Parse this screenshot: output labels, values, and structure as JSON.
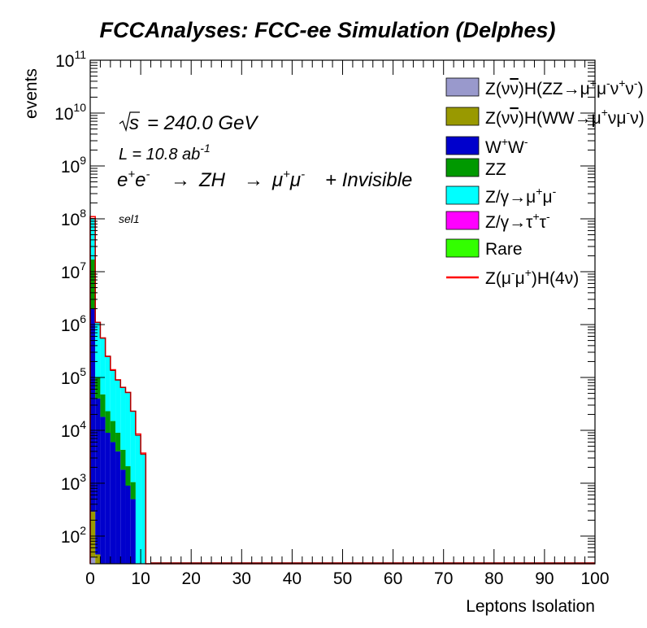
{
  "chart_data": {
    "type": "bar",
    "title": "FCCAnalyses: FCC-ee Simulation (Delphes)",
    "xlabel": "Leptons Isolation",
    "ylabel": "events",
    "log_y": true,
    "stacked": true,
    "xlim": [
      0,
      100
    ],
    "ylim": [
      30,
      100000000000
    ],
    "grid": false,
    "legend_position": "top-right",
    "x_ticks": [
      "0",
      "10",
      "20",
      "30",
      "40",
      "50",
      "60",
      "70",
      "80",
      "90",
      "100"
    ],
    "y_ticks": [
      {
        "base": "10",
        "exp": "2"
      },
      {
        "base": "10",
        "exp": "3"
      },
      {
        "base": "10",
        "exp": "4"
      },
      {
        "base": "10",
        "exp": "5"
      },
      {
        "base": "10",
        "exp": "6"
      },
      {
        "base": "10",
        "exp": "7"
      },
      {
        "base": "10",
        "exp": "8"
      },
      {
        "base": "10",
        "exp": "9"
      },
      {
        "base": "10",
        "exp": "10"
      },
      {
        "base": "10",
        "exp": "11"
      }
    ],
    "annotations": {
      "sqrt_s": "= 240.0 GeV",
      "sqrt_s_symbol": "s",
      "lumi": "L = 10.8 ab",
      "lumi_exp": "-1",
      "process_a": "e",
      "process_b": "ZH",
      "process_c": "μ",
      "process_d": "+ Invisible",
      "selection": "sel1"
    },
    "bin_edges": [
      0,
      1,
      2,
      3,
      4,
      5,
      6,
      7,
      8,
      9,
      10,
      11,
      12
    ],
    "series": [
      {
        "name": "Z(νν̄)H(ZZ→μ⁺μ⁻ν⁺ν⁻)",
        "color": "#9999cc",
        "values": [
          40,
          0,
          0,
          0,
          0,
          0,
          0,
          0,
          0,
          0,
          0,
          0
        ]
      },
      {
        "name": "Z(νν̄)H(WW→μ⁺νμ⁻ν)",
        "color": "#999900",
        "values": [
          250,
          45,
          0,
          0,
          0,
          0,
          0,
          0,
          0,
          0,
          0,
          0
        ]
      },
      {
        "name": "W⁺W⁻",
        "color": "#0000cc",
        "values": [
          2000000,
          40000,
          18000,
          9000,
          6000,
          4000,
          1800,
          900,
          500,
          0,
          0,
          0
        ]
      },
      {
        "name": "ZZ",
        "color": "#009900",
        "values": [
          15000000,
          60000,
          30000,
          14000,
          9000,
          5000,
          2500,
          1200,
          550,
          0,
          0,
          0
        ]
      },
      {
        "name": "Z/γ→μ⁺μ⁻",
        "color": "#00ffff",
        "values": [
          85000000,
          1000000,
          500000,
          230000,
          120000,
          80000,
          60000,
          50000,
          22000,
          8000,
          3500,
          0
        ]
      },
      {
        "name": "Z/γ→τ⁺τ⁻",
        "color": "#ff00ff",
        "values": [
          3000,
          2500,
          1200,
          700,
          450,
          300,
          150,
          70,
          0,
          0,
          0,
          0
        ]
      },
      {
        "name": "Rare",
        "color": "#33ff00",
        "values": [
          100,
          0,
          0,
          0,
          0,
          0,
          0,
          0,
          0,
          0,
          0,
          0
        ]
      }
    ],
    "signal": {
      "name": "Z(μ⁻μ⁺)H(4ν)",
      "color": "#ff0000",
      "values": [
        110000000,
        1100000,
        560000,
        250000,
        140000,
        90000,
        65000,
        52000,
        23000,
        8500,
        3700,
        30
      ]
    }
  },
  "legend": {
    "entries": [
      {
        "label_a": "Z(ν",
        "label_b": "ν",
        "label_c": ")H(ZZ→μ",
        "sup1": "+",
        "label_d": "μ",
        "sup2": "-",
        "label_e": "ν",
        "sup3": "+",
        "label_f": "ν",
        "sup4": "-",
        "label_g": ")"
      },
      {
        "label_a": "Z(ν",
        "label_b": "ν",
        "label_c": ")H(WW→μ",
        "sup1": "+",
        "label_d": "νμ",
        "sup2": "-",
        "label_e": "ν)",
        "sup3": "",
        "label_f": "",
        "sup4": "",
        "label_g": ""
      },
      {
        "label_a": "W",
        "sup1": "+",
        "label_c": "W",
        "sup2": "-"
      },
      {
        "label_a": "ZZ"
      },
      {
        "label_a": "Z/γ→μ",
        "sup1": "+",
        "label_c": "μ",
        "sup2": "-"
      },
      {
        "label_a": "Z/γ→τ",
        "sup1": "+",
        "label_c": "τ",
        "sup2": "-"
      },
      {
        "label_a": "Rare"
      },
      {
        "label_a": "Z(μ",
        "sup1": "-",
        "label_c": "μ",
        "sup2": "+",
        "label_d": ")H(4ν)"
      }
    ]
  }
}
